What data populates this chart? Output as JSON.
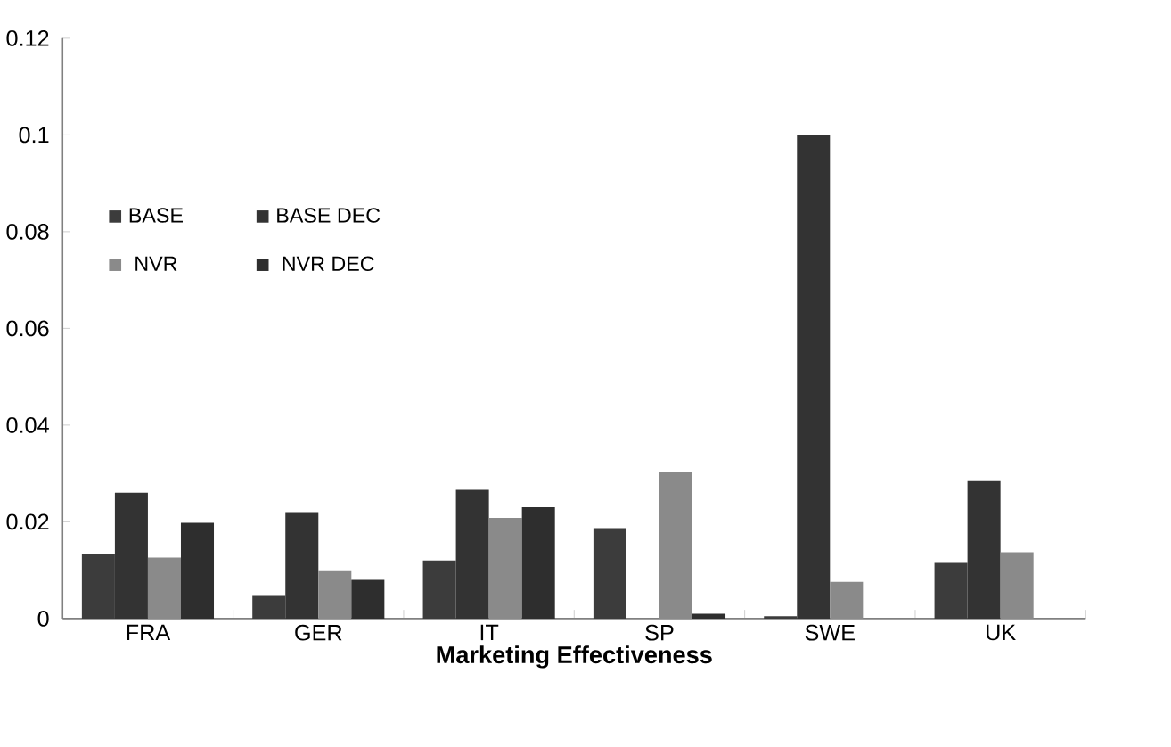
{
  "chart_data": {
    "type": "bar",
    "xlabel": "Marketing Effectiveness",
    "categories": [
      "FRA",
      "GER",
      "IT",
      "SP",
      "SWE",
      "UK"
    ],
    "series": [
      {
        "name": "BASE",
        "color": "#3c3c3c",
        "values": [
          0.0133,
          0.0047,
          0.012,
          0.0187,
          0.0005,
          0.0115
        ]
      },
      {
        "name": "BASE DEC",
        "color": "#333333",
        "values": [
          0.026,
          0.022,
          0.0266,
          null,
          0.1,
          0.0284
        ]
      },
      {
        "name": "NVR",
        "color": "#8a8a8a",
        "values": [
          0.0126,
          0.01,
          0.0208,
          0.0302,
          0.0076,
          0.0137
        ]
      },
      {
        "name": "NVR DEC",
        "color": "#2e2e2e",
        "values": [
          0.0198,
          0.008,
          0.023,
          0.001,
          null,
          null
        ]
      }
    ],
    "ylim": [
      0,
      0.12
    ],
    "yticks": [
      0,
      0.02,
      0.04,
      0.06,
      0.08,
      0.1,
      0.12
    ],
    "legend": "top left",
    "grid": false
  }
}
